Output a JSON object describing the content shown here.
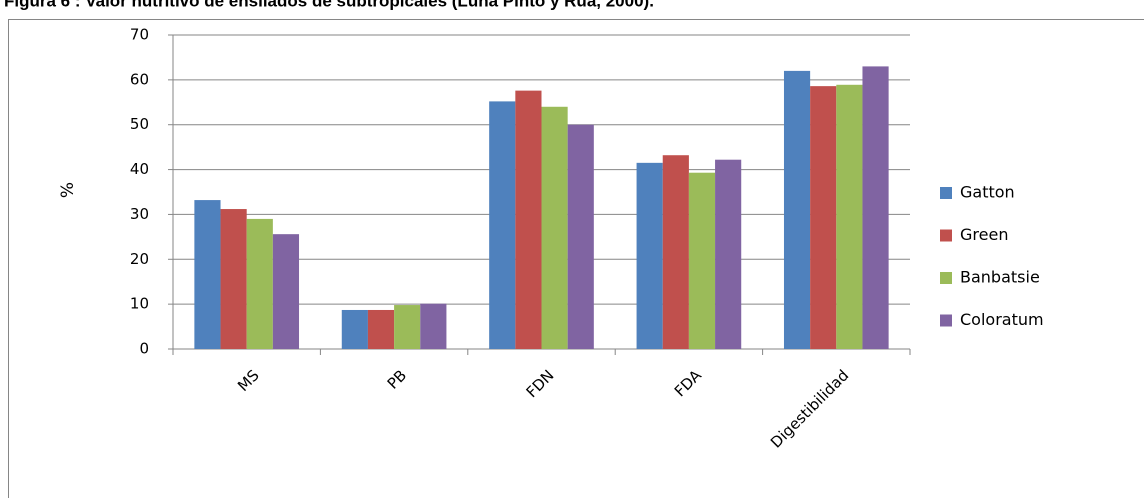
{
  "chart_data": {
    "type": "bar",
    "title": "Figura 6 : Valor nutritivo de ensilados de subtropicales (Luna Pinto y Rua, 2000).",
    "y_label": "%",
    "categories": [
      "MS",
      "PB",
      "FDN",
      "FDA",
      "Digestibilidad"
    ],
    "series": [
      {
        "name": "Gatton",
        "color": "#4f81bd",
        "values": [
          33.2,
          8.7,
          55.2,
          41.5,
          62
        ]
      },
      {
        "name": "Green",
        "color": "#c0504d",
        "values": [
          31.2,
          8.7,
          57.6,
          43.2,
          58.6
        ]
      },
      {
        "name": "Banbatsie",
        "color": "#9bbb59",
        "values": [
          29,
          9.8,
          54,
          39.3,
          58.9
        ]
      },
      {
        "name": "Coloratum",
        "color": "#8064a2",
        "values": [
          25.6,
          10.1,
          50,
          42.2,
          63
        ]
      }
    ],
    "ylim": [
      0,
      70
    ],
    "yticks": [
      0,
      10,
      20,
      30,
      40,
      50,
      60,
      70
    ],
    "grid": true,
    "legend": "right"
  }
}
